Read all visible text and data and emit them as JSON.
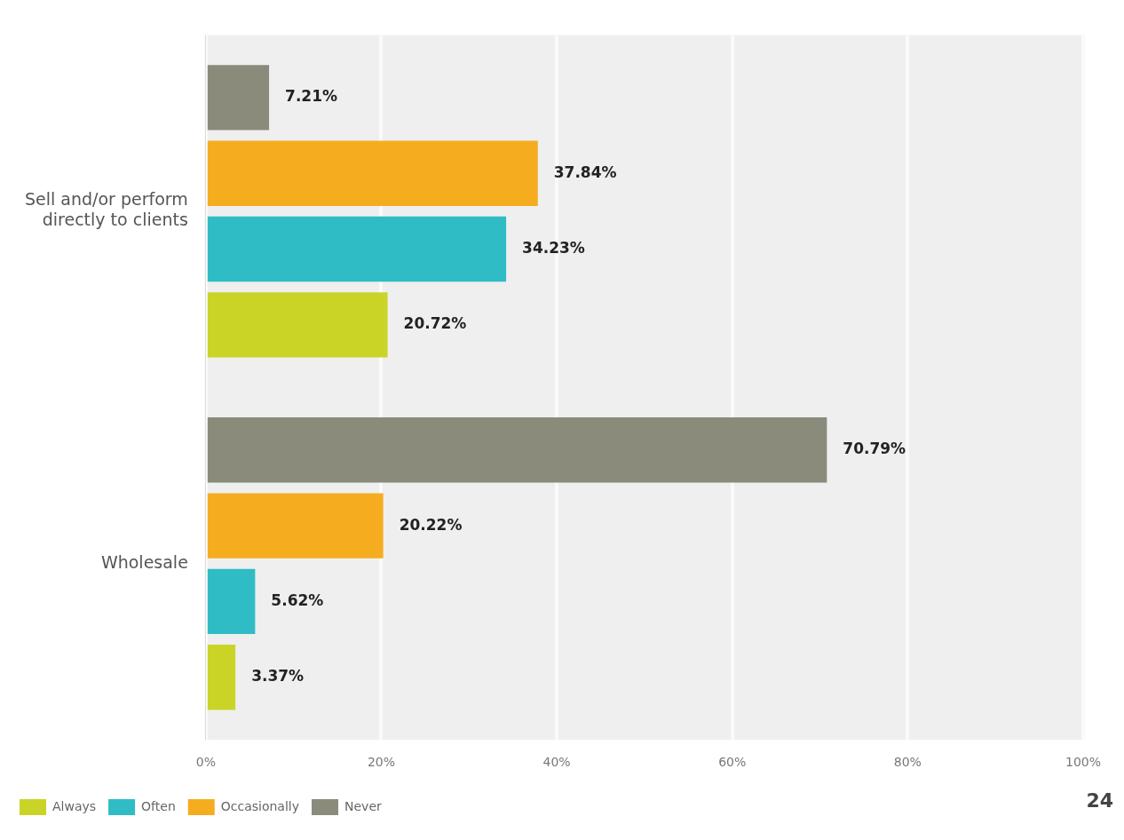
{
  "chart_data": {
    "type": "bar",
    "orientation": "horizontal",
    "categories": [
      "Sell and/or perform directly to clients",
      "Wholesale"
    ],
    "series": [
      {
        "name": "Always",
        "color": "#c9d426",
        "values": [
          20.72,
          3.37
        ],
        "value_labels": [
          "20.72%",
          "3.37%"
        ]
      },
      {
        "name": "Often",
        "color": "#2fbcc4",
        "values": [
          34.23,
          5.62
        ],
        "value_labels": [
          "34.23%",
          "5.62%"
        ]
      },
      {
        "name": "Occasionally",
        "color": "#f5ad1f",
        "values": [
          37.84,
          20.22
        ],
        "value_labels": [
          "37.84%",
          "20.22%"
        ]
      },
      {
        "name": "Never",
        "color": "#8a8b7b",
        "values": [
          7.21,
          70.79
        ],
        "value_labels": [
          "7.21%",
          "70.79%"
        ]
      }
    ],
    "xlim": [
      0,
      100
    ],
    "xticks": [
      {
        "value": 0,
        "label": "0%"
      },
      {
        "value": 20,
        "label": "20%"
      },
      {
        "value": 40,
        "label": "40%"
      },
      {
        "value": 60,
        "label": "60%"
      },
      {
        "value": 80,
        "label": "80%"
      },
      {
        "value": 100,
        "label": "100%"
      }
    ],
    "grid": "x",
    "legend": "bottom",
    "annotations": [
      "24"
    ]
  }
}
